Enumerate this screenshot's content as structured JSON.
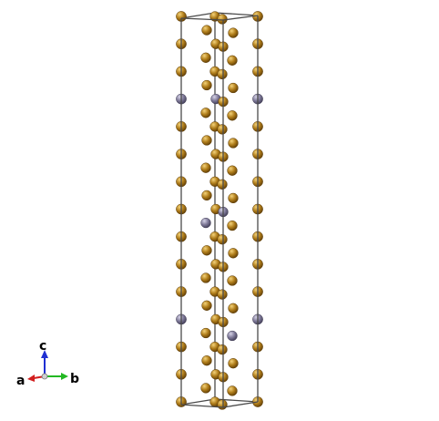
{
  "colors": {
    "background": "#ffffff",
    "cell_edge": "#4a4a4a",
    "atom_primary": "#b07d1a",
    "atom_secondary": "#7f7a99",
    "axis_a": "#d21f1f",
    "axis_b": "#22b822",
    "axis_c": "#1f2fd2"
  },
  "axes": {
    "a_label": "a",
    "b_label": "b",
    "c_label": "c"
  },
  "structure": {
    "layer_count": 15,
    "secondary_pattern": [
      3,
      7,
      11
    ]
  }
}
